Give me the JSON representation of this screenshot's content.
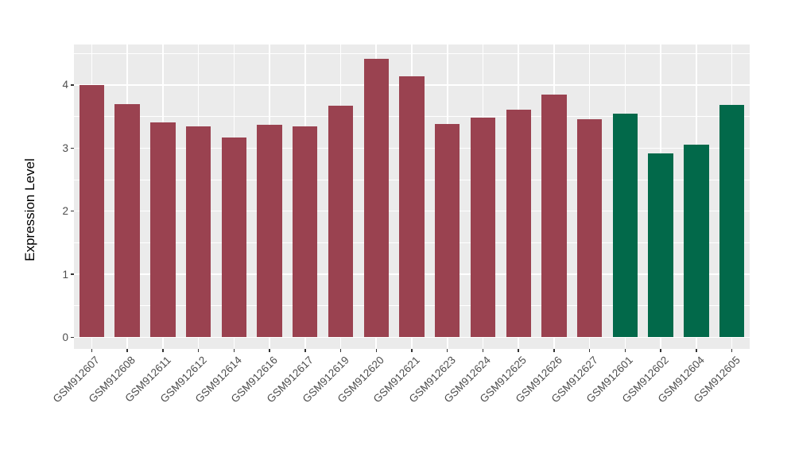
{
  "chart_data": {
    "type": "bar",
    "title": "",
    "xlabel": "",
    "ylabel": "Expression Level",
    "categories": [
      "GSM912607",
      "GSM912608",
      "GSM912611",
      "GSM912612",
      "GSM912614",
      "GSM912616",
      "GSM912617",
      "GSM912619",
      "GSM912620",
      "GSM912621",
      "GSM912623",
      "GSM912624",
      "GSM912625",
      "GSM912626",
      "GSM912627",
      "GSM912601",
      "GSM912602",
      "GSM912604",
      "GSM912605"
    ],
    "values": [
      4.0,
      3.7,
      3.41,
      3.34,
      3.17,
      3.37,
      3.34,
      3.67,
      4.41,
      4.14,
      3.38,
      3.48,
      3.61,
      3.85,
      3.46,
      3.55,
      2.92,
      3.05,
      3.69
    ],
    "groups": [
      "group1",
      "group1",
      "group1",
      "group1",
      "group1",
      "group1",
      "group1",
      "group1",
      "group1",
      "group1",
      "group1",
      "group1",
      "group1",
      "group1",
      "group1",
      "group2",
      "group2",
      "group2",
      "group2"
    ],
    "group_colors": {
      "group1": "#9A4250",
      "group2": "#02694A"
    },
    "ylim": [
      -0.19,
      4.64
    ],
    "yticks": [
      0,
      1,
      2,
      3,
      4
    ],
    "yminor": [
      0.5,
      1.5,
      2.5,
      3.5,
      4.5
    ],
    "grid": "on",
    "legend": "none",
    "panel_background": "#EBEBEB",
    "gridline_color": "#FFFFFF",
    "tick_label_color": "#4D4D4D",
    "axis_title_color": "#000000"
  }
}
